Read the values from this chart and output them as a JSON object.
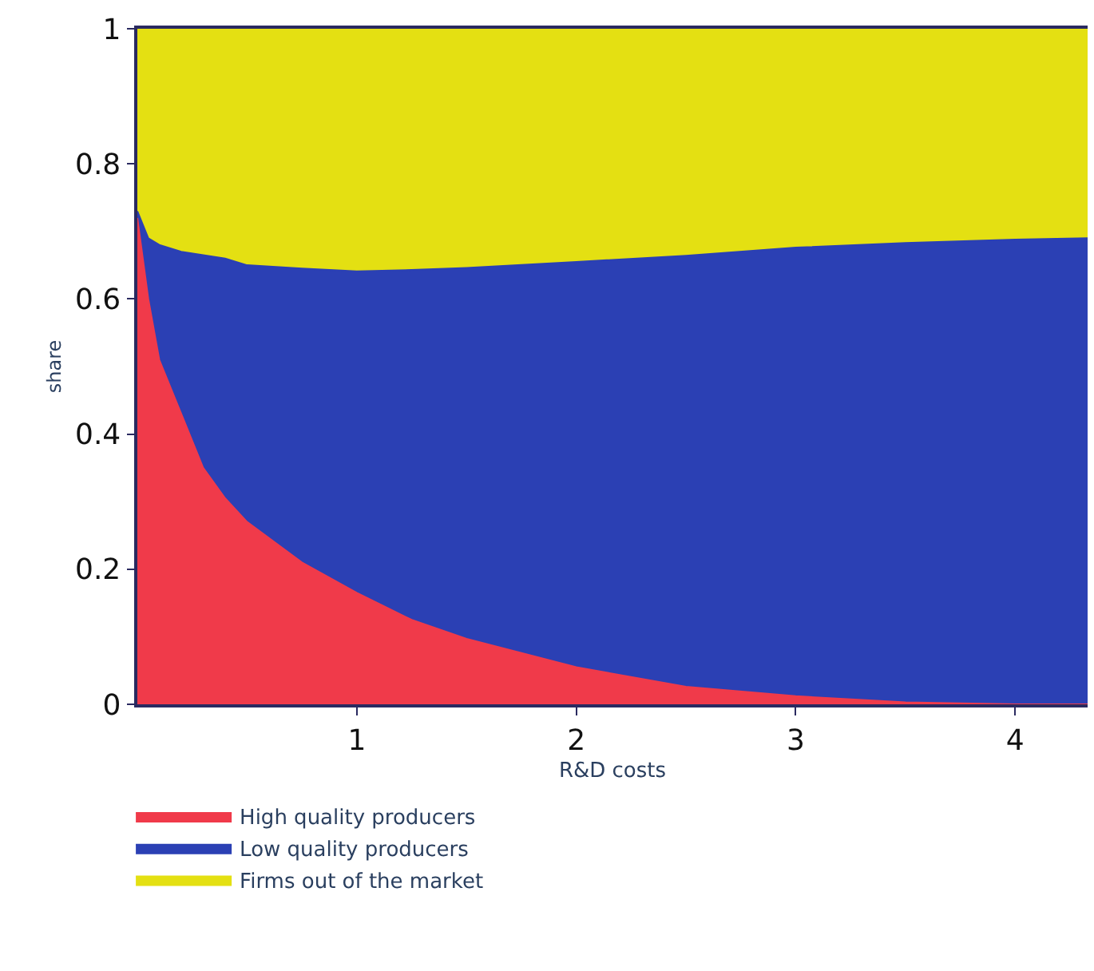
{
  "chart_data": {
    "type": "area",
    "stacked": true,
    "xlabel": "R&D costs",
    "ylabel": "share",
    "x": [
      0,
      0.05,
      0.1,
      0.2,
      0.3,
      0.4,
      0.5,
      0.75,
      1,
      1.25,
      1.5,
      2,
      2.5,
      3,
      3.5,
      4,
      4.33
    ],
    "series": [
      {
        "name": "High quality producers",
        "color": "#f03a4a",
        "values": [
          0.72,
          0.6,
          0.51,
          0.43,
          0.35,
          0.305,
          0.27,
          0.21,
          0.165,
          0.125,
          0.097,
          0.055,
          0.026,
          0.012,
          0.003,
          0,
          0
        ]
      },
      {
        "name": "Low quality producers",
        "color": "#2b40b4",
        "values": [
          0.01,
          0.09,
          0.17,
          0.24,
          0.315,
          0.355,
          0.38,
          0.435,
          0.476,
          0.518,
          0.549,
          0.6,
          0.638,
          0.664,
          0.68,
          0.688,
          0.69
        ]
      },
      {
        "name": "Firms out of the market",
        "color": "#e4e012",
        "values": [
          0.27,
          0.31,
          0.32,
          0.33,
          0.335,
          0.34,
          0.35,
          0.355,
          0.359,
          0.357,
          0.354,
          0.345,
          0.336,
          0.324,
          0.317,
          0.312,
          0.31
        ]
      }
    ],
    "xlim": [
      0,
      4.33
    ],
    "xticks": [
      1,
      2,
      3,
      4
    ],
    "ylim": [
      0,
      1
    ],
    "yticks": [
      0,
      0.2,
      0.4,
      0.6,
      0.8,
      1
    ],
    "legend": "bottom"
  }
}
